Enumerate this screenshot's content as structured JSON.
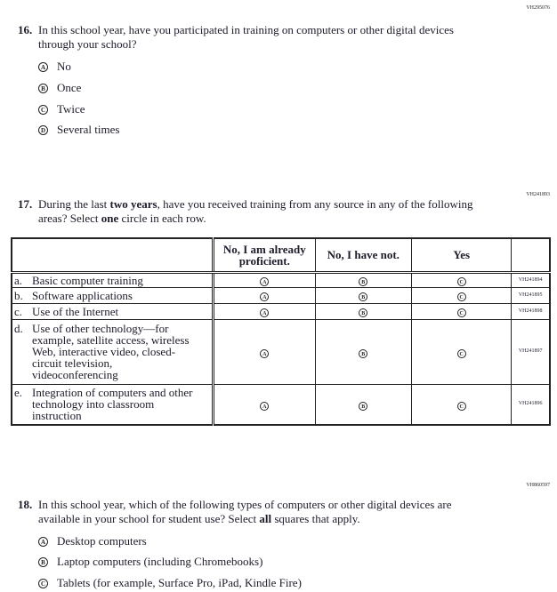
{
  "q16": {
    "code": "VH295076",
    "number": "16.",
    "text": "In this school year, have you participated in training on computers or other digital devices through your school?",
    "options": [
      {
        "letter": "A",
        "label": "No"
      },
      {
        "letter": "B",
        "label": "Once"
      },
      {
        "letter": "C",
        "label": "Twice"
      },
      {
        "letter": "D",
        "label": "Several times"
      }
    ]
  },
  "q17": {
    "code": "VH241893",
    "number": "17.",
    "text_pre": "During the last ",
    "text_bold1": "two years",
    "text_mid": ", have you received training from any source in any of the following areas? Select ",
    "text_bold2": "one",
    "text_post": " circle in each row.",
    "columns": [
      "No, I am already proficient.",
      "No, I have not.",
      "Yes"
    ],
    "bubble_letters": [
      "A",
      "B",
      "C"
    ],
    "rows": [
      {
        "letter": "a.",
        "label": "Basic computer training",
        "code": "VH241894"
      },
      {
        "letter": "b.",
        "label": "Software applications",
        "code": "VH241895"
      },
      {
        "letter": "c.",
        "label": "Use of the Internet",
        "code": "VH241898"
      },
      {
        "letter": "d.",
        "label": "Use of other technology—for example, satellite access, wireless Web, interactive video, closed-circuit television, videoconferencing",
        "code": "VH241897"
      },
      {
        "letter": "e.",
        "label": "Integration of computers and other technology into classroom instruction",
        "code": "VH241896"
      }
    ]
  },
  "q18": {
    "code": "VH860597",
    "number": "18.",
    "text_pre": "In this school year, which of the following types of computers or other digital devices are available in your school for student use? Select ",
    "text_bold": "all",
    "text_post": " squares that apply.",
    "options": [
      {
        "letter": "A",
        "label": "Desktop computers"
      },
      {
        "letter": "B",
        "label": "Laptop computers (including Chromebooks)"
      },
      {
        "letter": "C",
        "label": "Tablets (for example, Surface Pro, iPad, Kindle Fire)"
      }
    ]
  }
}
